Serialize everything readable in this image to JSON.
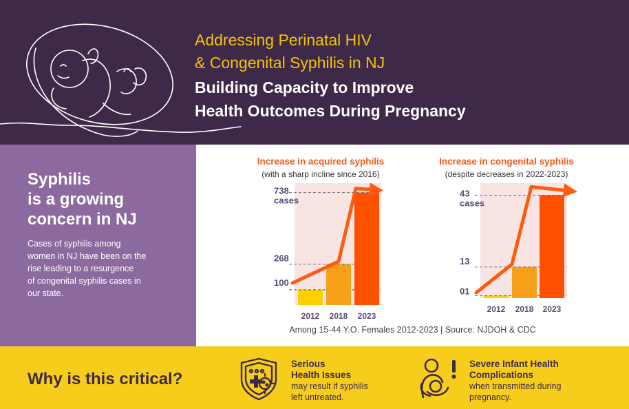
{
  "header": {
    "subtitle_line1": "Addressing Perinatal HIV",
    "subtitle_line2": "& Congenital Syphilis in NJ",
    "title_line1": "Building Capacity to Improve",
    "title_line2": "Health Outcomes During Pregnancy"
  },
  "sidebar": {
    "heading": [
      "Syphilis",
      "is a growing",
      "concern in NJ"
    ],
    "body": [
      "Cases of syphilis among",
      "women in NJ have been on the",
      "rise leading to a resurgence",
      "of congenital syphilis cases in",
      "our state."
    ]
  },
  "chart_data": [
    {
      "type": "bar",
      "title": "Increase in acquired syphilis",
      "subtitle": "(with a sharp incline since 2016)",
      "categories": [
        "2012",
        "2018",
        "2023"
      ],
      "values": [
        100,
        268,
        738
      ],
      "value_labels": [
        "100",
        "268",
        "738"
      ],
      "unit_label": "cases",
      "ylim": [
        0,
        800
      ],
      "colors": [
        "#ffd000",
        "#f7a11a",
        "#ff5000"
      ],
      "trend": "arrow rising sharply through the bar tops"
    },
    {
      "type": "bar",
      "title": "Increase in congenital syphilis",
      "subtitle": "(despite decreases in 2022-2023)",
      "categories": [
        "2012",
        "2018",
        "2023"
      ],
      "values": [
        1,
        13,
        43
      ],
      "value_labels": [
        "01",
        "13",
        "43"
      ],
      "unit_label": "cases",
      "ylim": [
        0,
        48
      ],
      "colors": [
        "#ffd000",
        "#f7a11a",
        "#ff5000"
      ],
      "trend": "arrow rising sharply then flattening"
    }
  ],
  "source_note": "Among 15-44 Y.O. Females 2012-2023  |  Source: NJDOH & CDC",
  "footer": {
    "question": "Why is this critical?",
    "items": [
      {
        "heading1": "Serious",
        "heading2": "Health Issues",
        "body1": "may result if syphilis",
        "body2": "left untreated.",
        "icon": "shield-medical-icon"
      },
      {
        "heading1": "Severe Infant Health",
        "heading2": "Complications",
        "body1": "when transmitted during",
        "body2": "pregnancy.",
        "icon": "mother-infant-icon"
      }
    ]
  },
  "colors": {
    "header_bg": "#3e2a48",
    "accent_yellow": "#f4c20d",
    "sidebar_bg": "#8c6aa0",
    "footer_bg": "#f6cd1b",
    "chart_title": "#f05a1a",
    "trend_line": "#ff5a10",
    "plot_bg": "#f9e4e4"
  }
}
